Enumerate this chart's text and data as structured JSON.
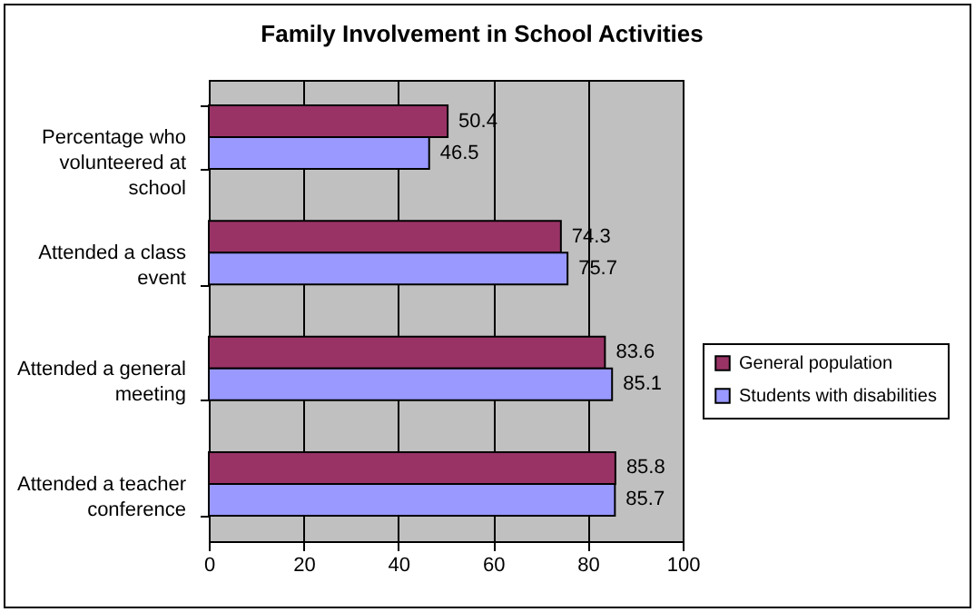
{
  "chart_data": {
    "type": "bar",
    "orientation": "horizontal",
    "title": "Family Involvement in School Activities",
    "categories": [
      "Percentage who volunteered at school",
      "Attended a class event",
      "Attended a general meeting",
      "Attended a teacher conference"
    ],
    "series": [
      {
        "name": "General population",
        "color": "#993366",
        "values": [
          50.4,
          74.3,
          83.6,
          85.8
        ]
      },
      {
        "name": "Students with disabilities",
        "color": "#9999ff",
        "values": [
          46.5,
          75.7,
          85.1,
          85.7
        ]
      }
    ],
    "xlim": [
      0,
      100
    ],
    "xticks": [
      0,
      20,
      40,
      60,
      80,
      100
    ],
    "grid": "x",
    "legend": "right",
    "data_labels": true
  }
}
